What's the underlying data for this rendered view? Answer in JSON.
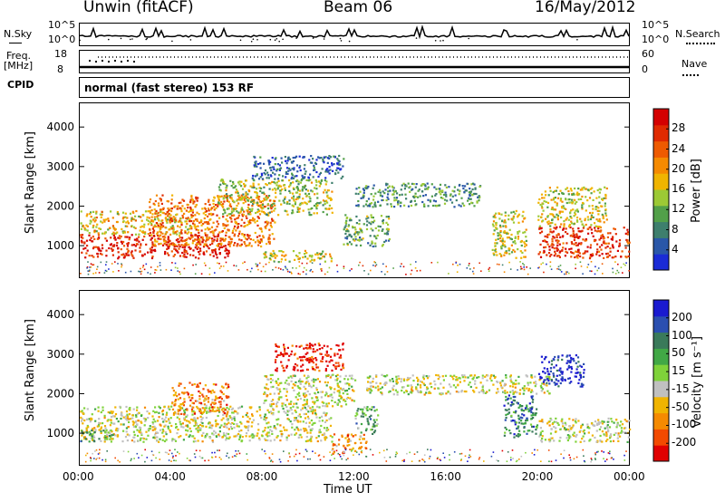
{
  "header": {
    "station": "Unwin (fitACF)",
    "beam": "Beam 06",
    "date": "16/May/2012"
  },
  "top_panels": {
    "nsky_label": "N.Sky",
    "nsearch_label": "N.Search",
    "nsky_ticks": [
      "10^5",
      "10^0"
    ],
    "nsearch_ticks": [
      "10^5",
      "10^0"
    ],
    "freq_label": "Freq.",
    "freq_unit": "[MHz]",
    "freq_ticks": [
      "18",
      "8"
    ],
    "nave_label": "Nave",
    "nave_ticks": [
      "60",
      "0"
    ],
    "cpid_label": "CPID",
    "cpid_text": "normal (fast stereo) 153 RF"
  },
  "chart_data": [
    {
      "type": "heatmap",
      "name": "power-panel",
      "ylabel": "Slant Range [km]",
      "yticks": [
        "1000",
        "2000",
        "3000",
        "4000"
      ],
      "ylim": [
        200,
        4600
      ],
      "xlim": [
        0,
        24
      ],
      "colorbar": {
        "label": "Power [dB]",
        "ticks": [
          "4",
          "8",
          "12",
          "16",
          "20",
          "24",
          "28"
        ],
        "colors": [
          "#1a2bd6",
          "#2a57a8",
          "#3e7f6d",
          "#52a049",
          "#9cc935",
          "#f0b400",
          "#f58a00",
          "#ee5a00",
          "#e02a00",
          "#d40000"
        ]
      },
      "regions": [
        {
          "t0": 0.0,
          "t1": 6.5,
          "r0": 700,
          "r1": 1300,
          "level": 0.9
        },
        {
          "t0": 0.0,
          "t1": 5.0,
          "r0": 1300,
          "r1": 1900,
          "level": 0.55
        },
        {
          "t0": 3.0,
          "t1": 8.5,
          "r0": 1000,
          "r1": 2300,
          "level": 0.7
        },
        {
          "t0": 6.0,
          "t1": 11.0,
          "r0": 1800,
          "r1": 2700,
          "level": 0.45
        },
        {
          "t0": 7.5,
          "t1": 11.5,
          "r0": 2700,
          "r1": 3300,
          "level": 0.15
        },
        {
          "t0": 8.0,
          "t1": 11.0,
          "r0": 600,
          "r1": 900,
          "level": 0.5
        },
        {
          "t0": 11.5,
          "t1": 13.5,
          "r0": 1000,
          "r1": 1800,
          "level": 0.35
        },
        {
          "t0": 12.0,
          "t1": 17.5,
          "r0": 2000,
          "r1": 2600,
          "level": 0.3
        },
        {
          "t0": 18.0,
          "t1": 19.5,
          "r0": 700,
          "r1": 1900,
          "level": 0.5
        },
        {
          "t0": 20.0,
          "t1": 24.0,
          "r0": 700,
          "r1": 1500,
          "level": 0.85
        },
        {
          "t0": 20.0,
          "t1": 23.0,
          "r0": 1500,
          "r1": 2500,
          "level": 0.5
        }
      ]
    },
    {
      "type": "heatmap",
      "name": "velocity-panel",
      "ylabel": "Slant Range [km]",
      "yticks": [
        "1000",
        "2000",
        "3000",
        "4000"
      ],
      "ylim": [
        200,
        4600
      ],
      "xlim": [
        0,
        24
      ],
      "colorbar": {
        "label": "Velocity [m s⁻¹]",
        "ticks": [
          "-200",
          "-100",
          "-50",
          "-15",
          "15",
          "50",
          "100",
          "200"
        ],
        "colors": [
          "#e00000",
          "#f24a00",
          "#f58a00",
          "#f0b400",
          "#c0c0c0",
          "#7fd23a",
          "#41a846",
          "#3a7a5a",
          "#2b4fb0",
          "#1a1ad0"
        ]
      },
      "regions": [
        {
          "t0": 0.0,
          "t1": 11.0,
          "r0": 800,
          "r1": 1700,
          "level": 0.45
        },
        {
          "t0": 0.0,
          "t1": 1.5,
          "r0": 800,
          "r1": 1100,
          "level": 0.65
        },
        {
          "t0": 4.0,
          "t1": 6.5,
          "r0": 1500,
          "r1": 2300,
          "level": 0.25
        },
        {
          "t0": 8.5,
          "t1": 11.5,
          "r0": 2600,
          "r1": 3300,
          "level": 0.05
        },
        {
          "t0": 8.0,
          "t1": 12.0,
          "r0": 1700,
          "r1": 2500,
          "level": 0.45
        },
        {
          "t0": 11.0,
          "t1": 12.5,
          "r0": 500,
          "r1": 1000,
          "level": 0.25
        },
        {
          "t0": 12.0,
          "t1": 13.0,
          "r0": 1000,
          "r1": 1700,
          "level": 0.65
        },
        {
          "t0": 12.5,
          "t1": 20.5,
          "r0": 2000,
          "r1": 2500,
          "level": 0.45
        },
        {
          "t0": 18.5,
          "t1": 20.0,
          "r0": 900,
          "r1": 2000,
          "level": 0.75
        },
        {
          "t0": 20.0,
          "t1": 22.0,
          "r0": 2200,
          "r1": 3000,
          "level": 0.95
        },
        {
          "t0": 20.0,
          "t1": 24.0,
          "r0": 800,
          "r1": 1400,
          "level": 0.45
        }
      ]
    }
  ],
  "x_axis": {
    "ticks": [
      "00:00",
      "04:00",
      "08:00",
      "12:00",
      "16:00",
      "20:00",
      "00:00"
    ],
    "label": "Time UT"
  }
}
